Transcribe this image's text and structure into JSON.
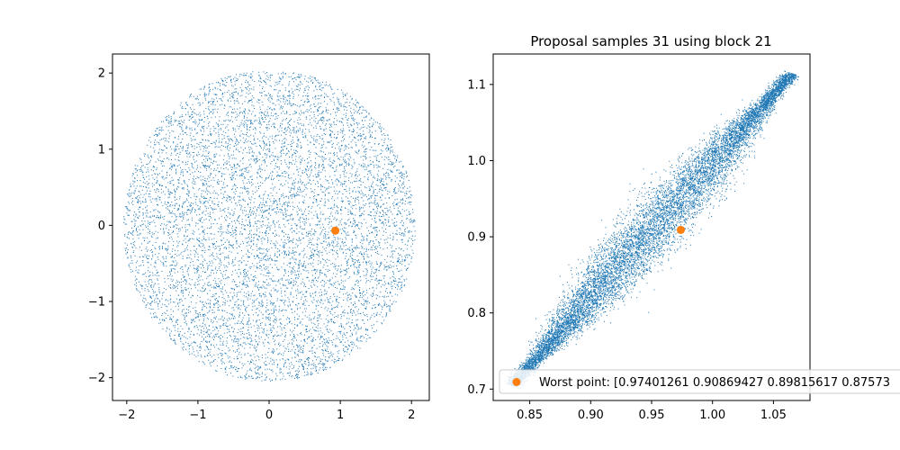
{
  "colors": {
    "samples": "#1f77b4",
    "worst_point": "#ff7f0e",
    "axes": "#000000",
    "legend_border": "#cccccc"
  },
  "chart_data": [
    {
      "type": "scatter",
      "title": "",
      "xlabel": "",
      "ylabel": "",
      "xlim": [
        -2.2,
        2.25
      ],
      "ylim": [
        -2.3,
        2.25
      ],
      "xticks": [
        -2,
        -1,
        0,
        1,
        2
      ],
      "yticks": [
        -2,
        -1,
        0,
        1,
        2
      ],
      "xtick_labels": [
        "−2",
        "−1",
        "0",
        "1",
        "2"
      ],
      "ytick_labels": [
        "−2",
        "−1",
        "0",
        "1",
        "2"
      ],
      "grid": false,
      "series": [
        {
          "kind": "samples",
          "marker_color": "#1f77b4",
          "distribution": "uniform-disk",
          "center": [
            0,
            0
          ],
          "radius": 2.05,
          "n_points": 9000
        },
        {
          "kind": "highlight",
          "marker_color": "#ff7f0e",
          "x": [
            0.93
          ],
          "y": [
            -0.07
          ]
        }
      ]
    },
    {
      "type": "scatter",
      "title": "Proposal samples 31 using block 21",
      "xlabel": "",
      "ylabel": "",
      "xlim": [
        0.82,
        1.08
      ],
      "ylim": [
        0.685,
        1.14
      ],
      "xticks": [
        0.85,
        0.9,
        0.95,
        1.0,
        1.05
      ],
      "yticks": [
        0.7,
        0.8,
        0.9,
        1.0,
        1.1
      ],
      "xtick_labels": [
        "0.85",
        "0.90",
        "0.95",
        "1.00",
        "1.05"
      ],
      "ytick_labels": [
        "0.7",
        "0.8",
        "0.9",
        "1.0",
        "1.1"
      ],
      "grid": false,
      "legend_position": "lower-left",
      "series": [
        {
          "kind": "samples",
          "marker_color": "#1f77b4",
          "distribution": "elongated-ellipse",
          "from": [
            0.835,
            0.705
          ],
          "to": [
            1.065,
            1.115
          ],
          "half_width": 0.024,
          "n_points": 14000
        },
        {
          "kind": "highlight",
          "name": "Worst point: [0.97401261 0.90869427 0.89815617 0.87573",
          "marker_color": "#ff7f0e",
          "x": [
            0.974
          ],
          "y": [
            0.909
          ]
        }
      ]
    }
  ]
}
